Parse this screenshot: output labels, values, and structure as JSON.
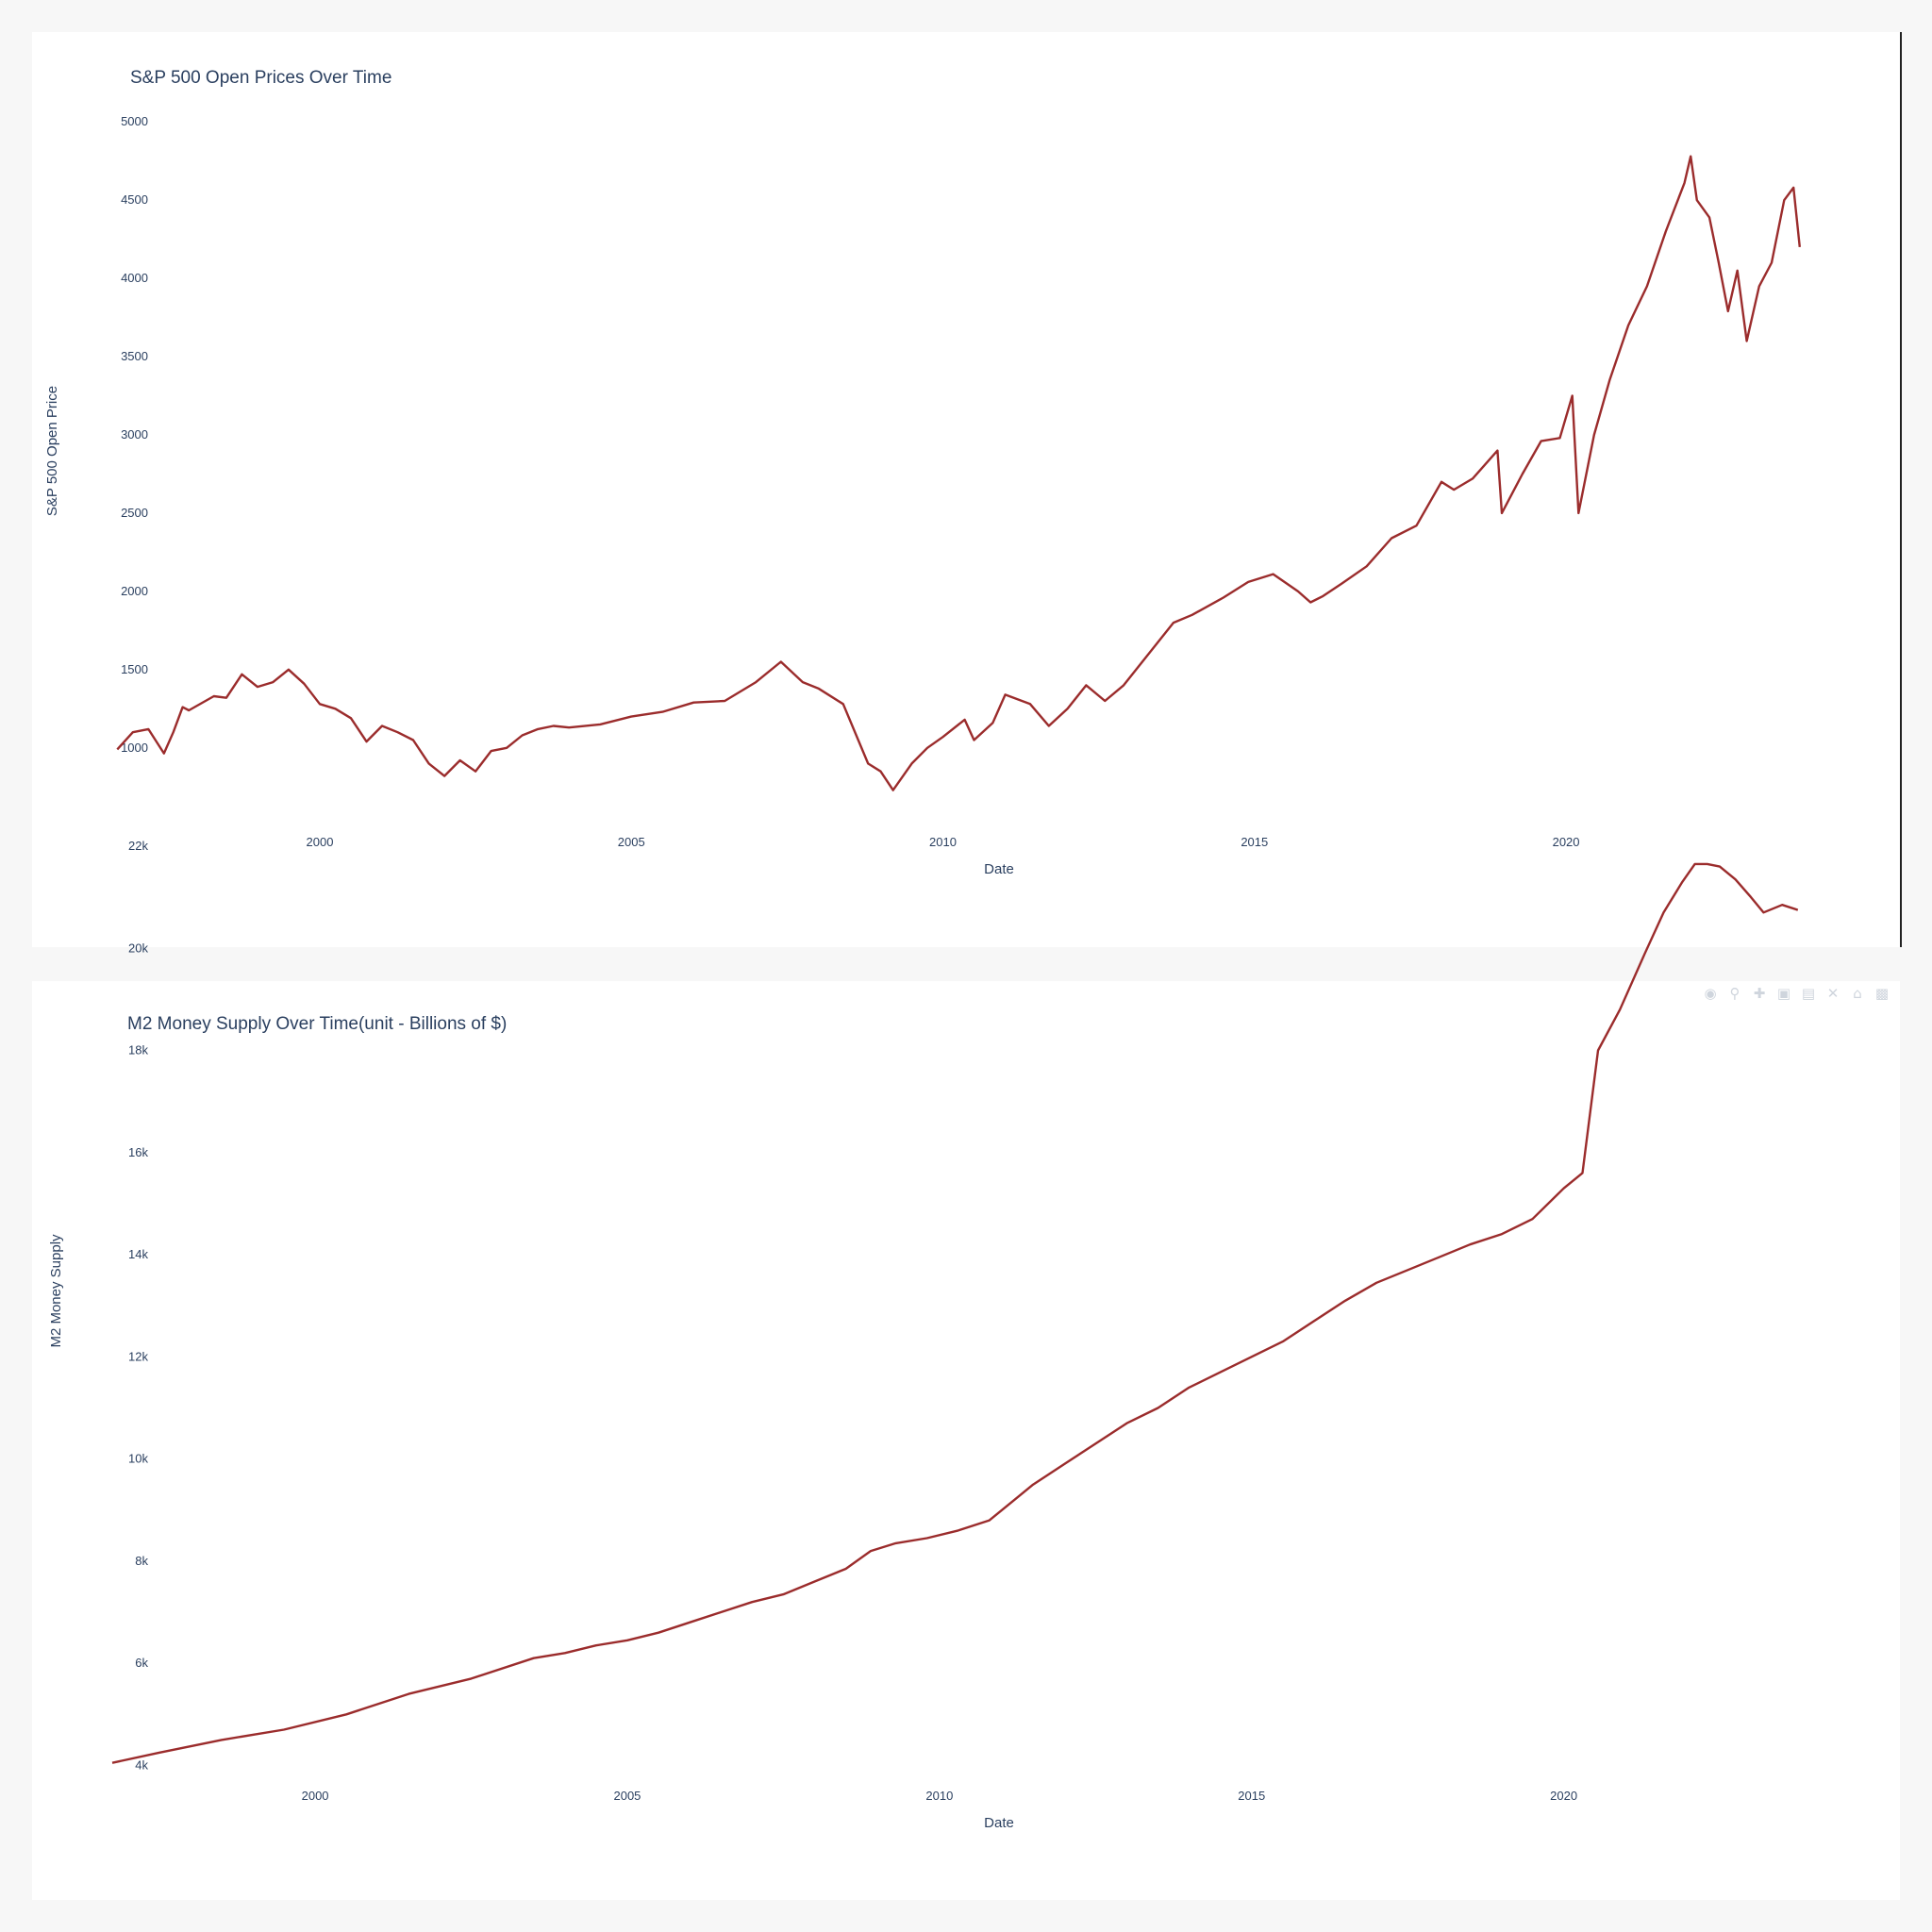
{
  "chart_data": [
    {
      "type": "line",
      "title": "S&P 500 Open Prices Over Time",
      "xlabel": "Date",
      "ylabel": "S&P 500 Open Price",
      "x_ticks": [
        "2000",
        "2005",
        "2010",
        "2015",
        "2020"
      ],
      "y_ticks": [
        "1000",
        "1500",
        "2000",
        "2500",
        "3000",
        "3500",
        "4000",
        "4500",
        "5000"
      ],
      "y_tick_values": [
        1000,
        1500,
        2000,
        2500,
        3000,
        3500,
        4000,
        4500,
        5000
      ],
      "xlim": [
        1996.67,
        2023.92
      ],
      "ylim": [
        655,
        5140
      ],
      "grid": false,
      "line_color": "#9b2c2c",
      "series": [
        {
          "x": [
            1996.75,
            1997.0,
            1997.25,
            1997.5,
            1997.65,
            1997.8,
            1997.9,
            1998.3,
            1998.5,
            1998.75,
            1999.0,
            1999.25,
            1999.5,
            1999.75,
            2000.0,
            2000.25,
            2000.5,
            2000.75,
            2001.0,
            2001.25,
            2001.5,
            2001.75,
            2002.0,
            2002.25,
            2002.5,
            2002.75,
            2003.0,
            2003.25,
            2003.5,
            2003.75,
            2004.0,
            2004.5,
            2005.0,
            2005.5,
            2006.0,
            2006.5,
            2007.0,
            2007.4,
            2007.75,
            2008.0,
            2008.4,
            2008.8,
            2009.0,
            2009.2,
            2009.5,
            2009.75,
            2010.0,
            2010.35,
            2010.5,
            2010.8,
            2011.0,
            2011.4,
            2011.7,
            2012.0,
            2012.3,
            2012.6,
            2012.9,
            2013.3,
            2013.7,
            2014.0,
            2014.5,
            2014.9,
            2015.3,
            2015.7,
            2015.9,
            2016.1,
            2016.4,
            2016.8,
            2017.2,
            2017.6,
            2018.0,
            2018.2,
            2018.5,
            2018.9,
            2018.97,
            2019.3,
            2019.6,
            2019.9,
            2020.1,
            2020.2,
            2020.45,
            2020.7,
            2021.0,
            2021.3,
            2021.6,
            2021.9,
            2022.0,
            2022.1,
            2022.3,
            2022.45,
            2022.6,
            2022.75,
            2022.9,
            2023.1,
            2023.3,
            2023.5,
            2023.65,
            2023.75
          ],
          "y": [
            990,
            1100,
            1120,
            965,
            1100,
            1260,
            1240,
            1330,
            1320,
            1470,
            1390,
            1420,
            1500,
            1410,
            1280,
            1250,
            1190,
            1040,
            1140,
            1100,
            1050,
            900,
            820,
            920,
            850,
            980,
            1000,
            1080,
            1120,
            1140,
            1130,
            1150,
            1200,
            1230,
            1290,
            1300,
            1420,
            1550,
            1420,
            1380,
            1280,
            900,
            850,
            730,
            900,
            1000,
            1070,
            1180,
            1050,
            1160,
            1340,
            1280,
            1140,
            1250,
            1400,
            1300,
            1400,
            1600,
            1800,
            1850,
            1960,
            2060,
            2110,
            2000,
            1930,
            1970,
            2050,
            2160,
            2340,
            2420,
            2700,
            2650,
            2720,
            2900,
            2500,
            2750,
            2960,
            2980,
            3250,
            2500,
            3000,
            3350,
            3700,
            3950,
            4300,
            4610,
            4780,
            4500,
            4390,
            4100,
            3790,
            4050,
            3600,
            3950,
            4100,
            4500,
            4580,
            4200
          ]
        }
      ]
    },
    {
      "type": "line",
      "title": "M2 Money Supply Over Time(unit - Billions of $)",
      "xlabel": "Date",
      "ylabel": "M2 Money Supply",
      "x_ticks": [
        "2000",
        "2005",
        "2010",
        "2015",
        "2020"
      ],
      "y_ticks": [
        "4k",
        "6k",
        "8k",
        "10k",
        "12k",
        "14k",
        "16k",
        "18k",
        "20k",
        "22k"
      ],
      "y_tick_values": [
        4000,
        6000,
        8000,
        10000,
        12000,
        14000,
        16000,
        18000,
        20000,
        22000
      ],
      "xlim": [
        1996.75,
        2023.95
      ],
      "ylim": [
        3620,
        22960
      ],
      "grid": false,
      "line_color": "#9b2c2c",
      "series": [
        {
          "x": [
            1996.75,
            1997.5,
            1998.5,
            1999.5,
            2000.5,
            2001.5,
            2002.5,
            2003.5,
            2004.0,
            2004.5,
            2005.0,
            2005.5,
            2006.0,
            2006.5,
            2007.0,
            2007.5,
            2008.0,
            2008.5,
            2008.9,
            2009.3,
            2009.8,
            2010.3,
            2010.8,
            2011.2,
            2011.5,
            2012.0,
            2012.5,
            2013.0,
            2013.5,
            2014.0,
            2014.5,
            2015.0,
            2015.5,
            2016.0,
            2016.5,
            2017.0,
            2017.5,
            2018.0,
            2018.5,
            2019.0,
            2019.5,
            2020.0,
            2020.3,
            2020.55,
            2020.9,
            2021.3,
            2021.6,
            2021.9,
            2022.1,
            2022.3,
            2022.5,
            2022.75,
            2023.0,
            2023.2,
            2023.5,
            2023.75
          ],
          "y": [
            4050,
            4250,
            4500,
            4700,
            5000,
            5400,
            5700,
            6100,
            6200,
            6350,
            6450,
            6600,
            6800,
            7000,
            7200,
            7350,
            7600,
            7850,
            8200,
            8350,
            8450,
            8600,
            8800,
            9200,
            9500,
            9900,
            10300,
            10700,
            11000,
            11400,
            11700,
            12000,
            12300,
            12700,
            13100,
            13450,
            13700,
            13950,
            14200,
            14400,
            14700,
            15300,
            15600,
            18000,
            18800,
            19900,
            20700,
            21300,
            21650,
            21650,
            21600,
            21350,
            21000,
            20700,
            20850,
            20750
          ]
        }
      ]
    }
  ],
  "modebar_icons": [
    "camera-icon",
    "zoom-icon",
    "pan-icon",
    "zoom-in-icon",
    "zoom-out-icon",
    "autoscale-icon",
    "home-icon",
    "plotly-logo-icon"
  ]
}
